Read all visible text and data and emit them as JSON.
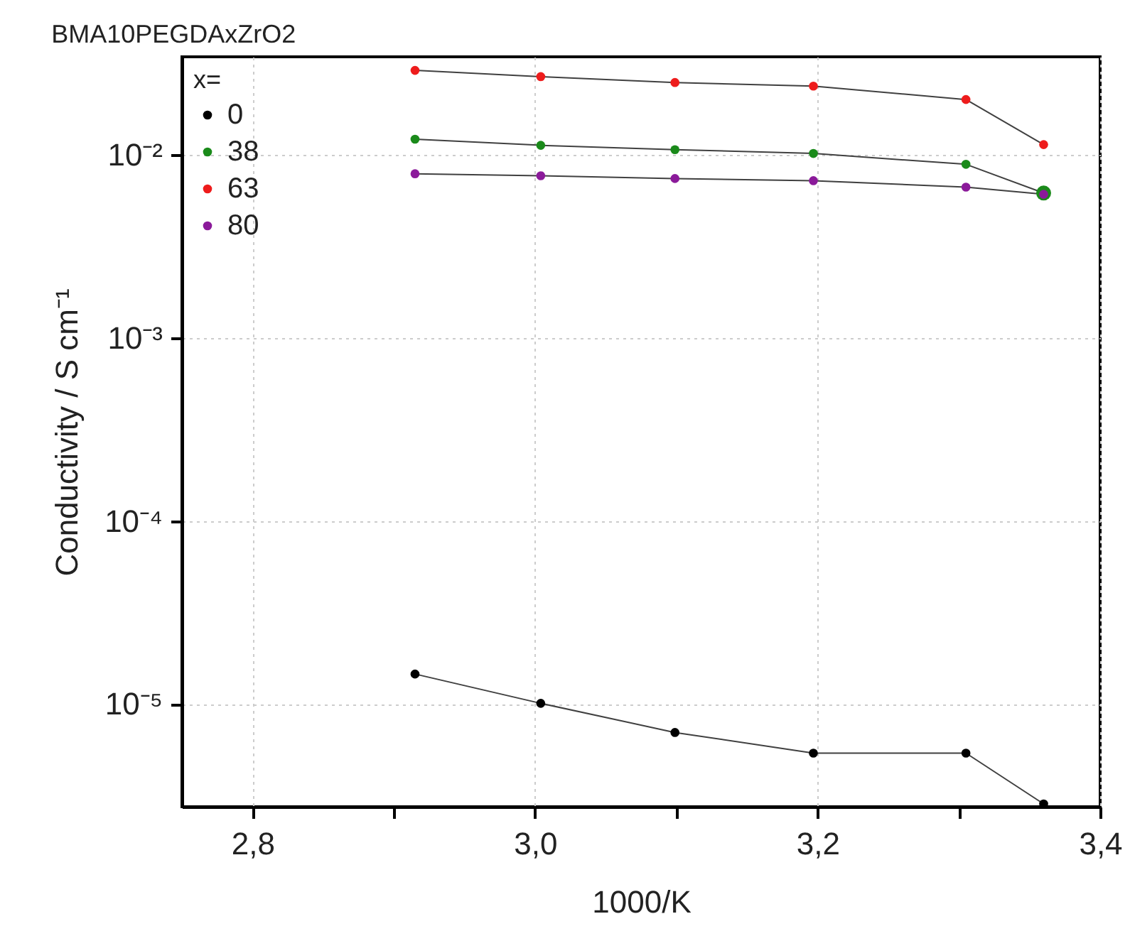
{
  "chart_data": {
    "type": "line",
    "title": "BMA10PEGDAxZrO2",
    "xlabel": "1000/K",
    "ylabel": "Conductivity / S cm⁻¹",
    "legend_title": "x=",
    "legend": "top left",
    "marker": "circle",
    "line_style": "solid",
    "log": "y",
    "grid": true,
    "x": [
      2.915,
      3.004,
      3.099,
      3.197,
      3.305,
      3.36
    ],
    "series": [
      {
        "name": "0",
        "color": "#000000",
        "values": [
          1.46e-05,
          1.01e-05,
          7e-06,
          5.4e-06,
          5.4e-06,
          2.85e-06
        ]
      },
      {
        "name": "38",
        "color": "#1a8a1a",
        "values": [
          0.0122,
          0.0113,
          0.0107,
          0.0102,
          0.0089,
          0.0062
        ]
      },
      {
        "name": "63",
        "color": "#ee1c1c",
        "values": [
          0.029,
          0.0268,
          0.0249,
          0.0238,
          0.0201,
          0.0114
        ]
      },
      {
        "name": "80",
        "color": "#8b1a9a",
        "values": [
          0.0079,
          0.0077,
          0.00744,
          0.00724,
          0.00668,
          0.0061
        ]
      }
    ],
    "xlim": [
      2.75,
      3.4
    ],
    "ylim": [
      2.75e-06,
      0.0344
    ],
    "xticks": [
      {
        "value": 2.8,
        "label": "2,8"
      },
      {
        "value": 2.9,
        "label": null
      },
      {
        "value": 3.0,
        "label": "3,0"
      },
      {
        "value": 3.1,
        "label": null
      },
      {
        "value": 3.2,
        "label": "3,2"
      },
      {
        "value": 3.3,
        "label": null
      },
      {
        "value": 3.4,
        "label": "3,4"
      }
    ],
    "yticks": [
      {
        "value": 1e-05,
        "label": "10⁻⁵"
      },
      {
        "value": 0.0001,
        "label": "10⁻⁴"
      },
      {
        "value": 0.001,
        "label": "10⁻³"
      },
      {
        "value": 0.01,
        "label": "10⁻²"
      }
    ]
  }
}
